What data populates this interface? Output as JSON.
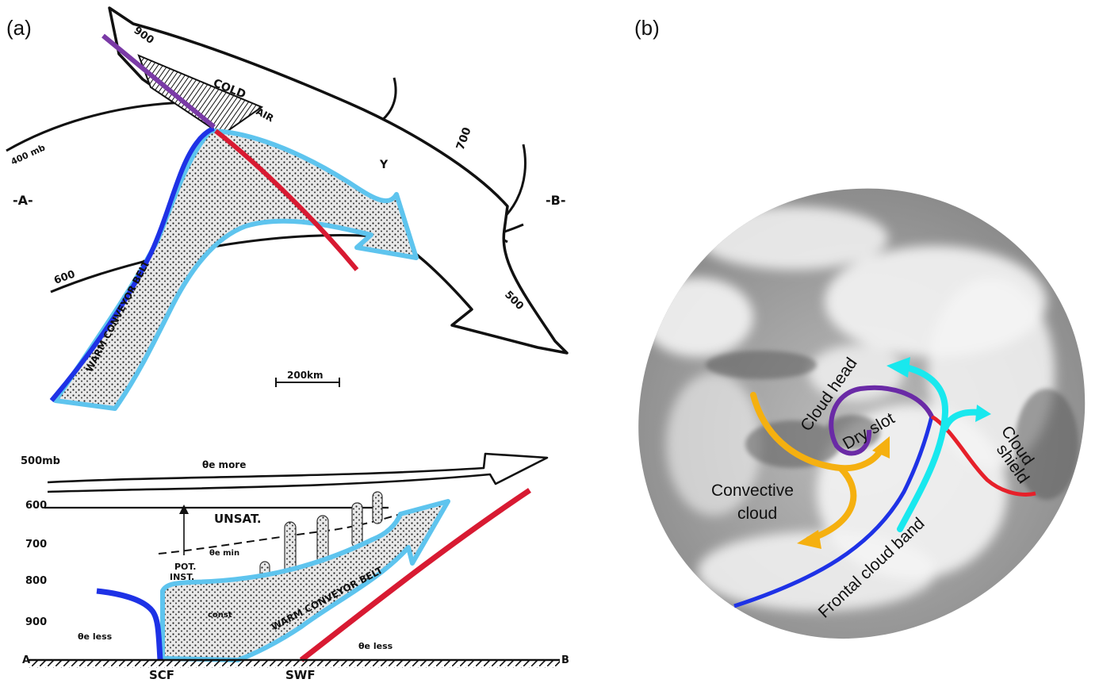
{
  "panel_a": {
    "label": "(a)",
    "plan": {
      "p900": "900",
      "cold": "COLD",
      "air": "AIR",
      "p400": "400 mb",
      "y": "Y",
      "p700": "700",
      "end_a": "-A-",
      "end_b": "-B-",
      "p600": "600",
      "p500": "500",
      "belt": "WARM CONVEYOR BELT",
      "scale": "200km"
    },
    "section": {
      "levels": [
        "500mb",
        "600",
        "700",
        "800",
        "900"
      ],
      "theta_more": "θe more",
      "unsat": "UNSAT.",
      "theta_min": "θe min",
      "pot": "POT.",
      "inst": "INST.",
      "const": "const",
      "belt": "WARM CONVEYOR BELT",
      "theta_less_left": "θe less",
      "theta_less_right": "θe less",
      "end_a": "A",
      "end_b": "B",
      "scf": "SCF",
      "swf": "SWF"
    }
  },
  "panel_b": {
    "label": "(b)",
    "labels": {
      "cloud_head": "Cloud head",
      "dry_slot": "Dry slot",
      "cloud": "Cloud",
      "shield": "shield",
      "convective": "Convective",
      "convective_cloud": "cloud",
      "frontal": "Frontal cloud band"
    }
  },
  "colors": {
    "cold_front": "#1e32e6",
    "warm_front": "#d81a32",
    "occlusion": "#7a3aa6",
    "conveyor_outline": "#5ec4ee",
    "convective_arrow": "#f5b010",
    "cloud_shield_arrow": "#19e8ee",
    "dry_slot_curve": "#6a2aa6"
  }
}
